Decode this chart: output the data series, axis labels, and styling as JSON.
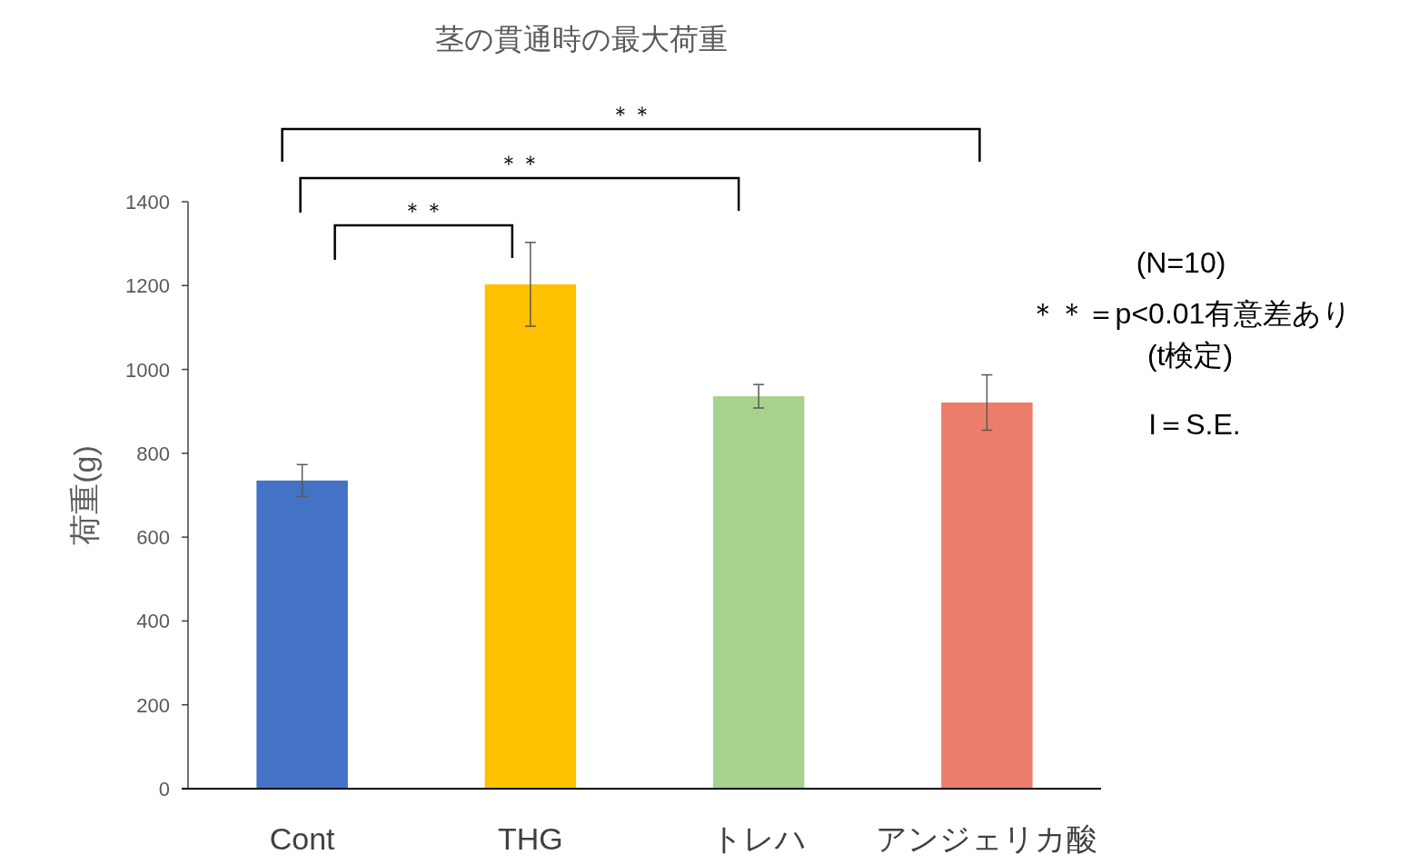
{
  "chart_data": {
    "type": "bar",
    "title": "茎の貫通時の最大荷重",
    "ylabel": "荷重(g)",
    "categories": [
      "Cont",
      "THG",
      "トレハ",
      "アンジェリカ酸"
    ],
    "values": [
      735,
      1203,
      936,
      921
    ],
    "colors": [
      "#4472c4",
      "#ffc000",
      "#a9d18e",
      "#ed7d6b"
    ],
    "errors": [
      38,
      100,
      28,
      66
    ],
    "ylim": [
      0,
      1400
    ],
    "yticks": [
      0,
      200,
      400,
      600,
      800,
      1000,
      1200,
      1400
    ],
    "grid": false,
    "annotations": [
      "＊＊",
      "＊＊",
      "＊＊",
      "(N=10)",
      "＊＊＝p<0.01有意差あり",
      "(t検定)",
      "I＝S.E."
    ]
  }
}
